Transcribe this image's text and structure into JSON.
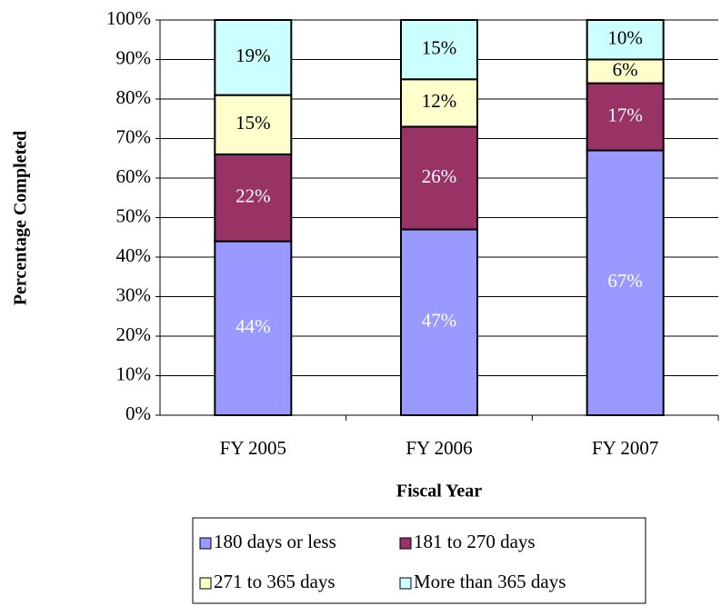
{
  "chart_data": {
    "type": "stacked_bar",
    "xlabel": "Fiscal Year",
    "ylabel": "Percentage Completed",
    "categories": [
      "FY 2005",
      "FY 2006",
      "FY 2007"
    ],
    "series": [
      {
        "name": "180 days or less",
        "color": "#9999ff",
        "label_color": "#ffffff",
        "values": [
          44,
          47,
          67
        ],
        "value_labels": [
          "44%",
          "47%",
          "67%"
        ]
      },
      {
        "name": "181 to 270 days",
        "color": "#993366",
        "label_color": "#ffffff",
        "values": [
          22,
          26,
          17
        ],
        "value_labels": [
          "22%",
          "26%",
          "17%"
        ]
      },
      {
        "name": "271 to 365 days",
        "color": "#ffffcc",
        "label_color": "#000000",
        "values": [
          15,
          12,
          6
        ],
        "value_labels": [
          "15%",
          "12%",
          "6%"
        ]
      },
      {
        "name": "More than 365 days",
        "color": "#ccffff",
        "label_color": "#000000",
        "values": [
          19,
          15,
          10
        ],
        "value_labels": [
          "19%",
          "15%",
          "10%"
        ]
      }
    ],
    "ylim": [
      0,
      100
    ],
    "yticks": [
      {
        "value": 0,
        "label": "0%"
      },
      {
        "value": 10,
        "label": "10%"
      },
      {
        "value": 20,
        "label": "20%"
      },
      {
        "value": 30,
        "label": "30%"
      },
      {
        "value": 40,
        "label": "40%"
      },
      {
        "value": 50,
        "label": "50%"
      },
      {
        "value": 60,
        "label": "60%"
      },
      {
        "value": 70,
        "label": "70%"
      },
      {
        "value": 80,
        "label": "80%"
      },
      {
        "value": 90,
        "label": "90%"
      },
      {
        "value": 100,
        "label": "100%"
      }
    ],
    "grid": true,
    "legend": "bottom"
  }
}
